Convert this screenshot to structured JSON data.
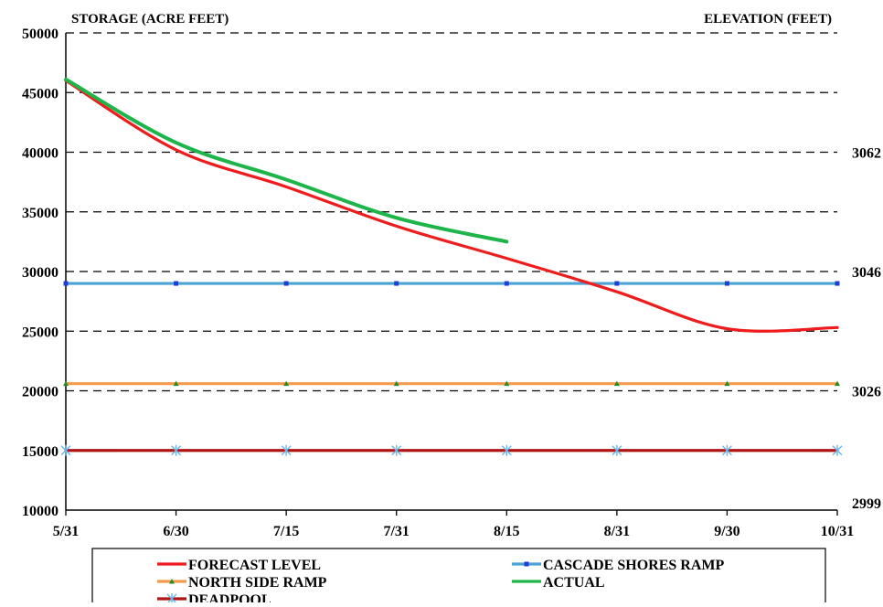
{
  "chart_data": {
    "type": "line",
    "ylabel_left": "STORAGE (ACRE FEET)",
    "ylabel_right": "ELEVATION (FEET)",
    "ylim": [
      10000,
      50000
    ],
    "y_ticks": [
      "10000",
      "15000",
      "20000",
      "25000",
      "30000",
      "35000",
      "40000",
      "45000",
      "50000"
    ],
    "x_categories": [
      "5/31",
      "6/30",
      "7/15",
      "7/31",
      "8/15",
      "8/31",
      "9/30",
      "10/31"
    ],
    "grid": "horizontal dashed",
    "right_axis_labels": [
      {
        "text": "3062",
        "storage": 40000
      },
      {
        "text": "3046",
        "storage": 30000
      },
      {
        "text": "3026",
        "storage": 20000
      },
      {
        "text": "2999",
        "storage": 10000
      }
    ],
    "series": [
      {
        "name": "FORECAST LEVEL",
        "color": "#ee1c1c",
        "marker": "none",
        "values": [
          46000,
          40200,
          37100,
          33800,
          31100,
          28300,
          25200,
          25300
        ]
      },
      {
        "name": "CASCADE SHORES RAMP",
        "color": "#4ba3d3",
        "marker": "square",
        "marker_color": "#1f3fd4",
        "values": [
          29000,
          29000,
          29000,
          29000,
          29000,
          29000,
          29000,
          29000
        ]
      },
      {
        "name": "NORTH SIDE RAMP",
        "color": "#f39a4c",
        "marker": "triangle",
        "marker_color": "#2a8a2a",
        "values": [
          20600,
          20600,
          20600,
          20600,
          20600,
          20600,
          20600,
          20600
        ]
      },
      {
        "name": "ACTUAL",
        "color": "#1db54a",
        "marker": "none",
        "values": [
          46100,
          40800,
          37700,
          34500,
          32500,
          null,
          null,
          null
        ]
      },
      {
        "name": "DEADPOOL",
        "color": "#b01515",
        "marker": "asterisk",
        "marker_color": "#6fb6e6",
        "values": [
          15000,
          15000,
          15000,
          15000,
          15000,
          15000,
          15000,
          15000
        ]
      }
    ],
    "legend_position": "bottom"
  }
}
